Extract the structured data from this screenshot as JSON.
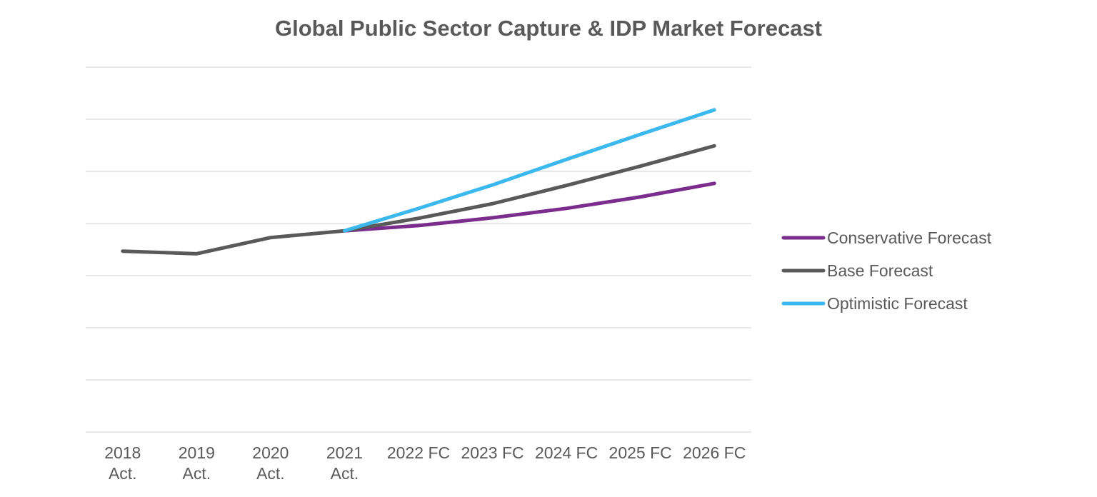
{
  "chart_data": {
    "type": "line",
    "title": "Global Public Sector Capture & IDP  Market Forecast",
    "xlabel": "",
    "ylabel": "",
    "categories": [
      "2018 Act.",
      "2019 Act.",
      "2020 Act.",
      "2021 Act.",
      "2022 FC",
      "2023 FC",
      "2024 FC",
      "2025 FC",
      "2026 FC"
    ],
    "ylim": [
      0,
      7
    ],
    "y_tick_labels_shown": false,
    "grid": true,
    "legend_position": "right",
    "series": [
      {
        "name": "Conservative Forecast",
        "color": "#7B2D8E",
        "values": [
          null,
          null,
          null,
          3.86,
          3.96,
          4.11,
          4.29,
          4.51,
          4.77
        ]
      },
      {
        "name": "Base Forecast",
        "color": "#595959",
        "values": [
          3.47,
          3.42,
          3.73,
          3.86,
          4.1,
          4.38,
          4.73,
          5.1,
          5.49
        ]
      },
      {
        "name": "Optimistic Forecast",
        "color": "#3BB8EE",
        "values": [
          null,
          null,
          null,
          3.86,
          4.29,
          4.74,
          5.23,
          5.71,
          6.18
        ]
      }
    ]
  }
}
